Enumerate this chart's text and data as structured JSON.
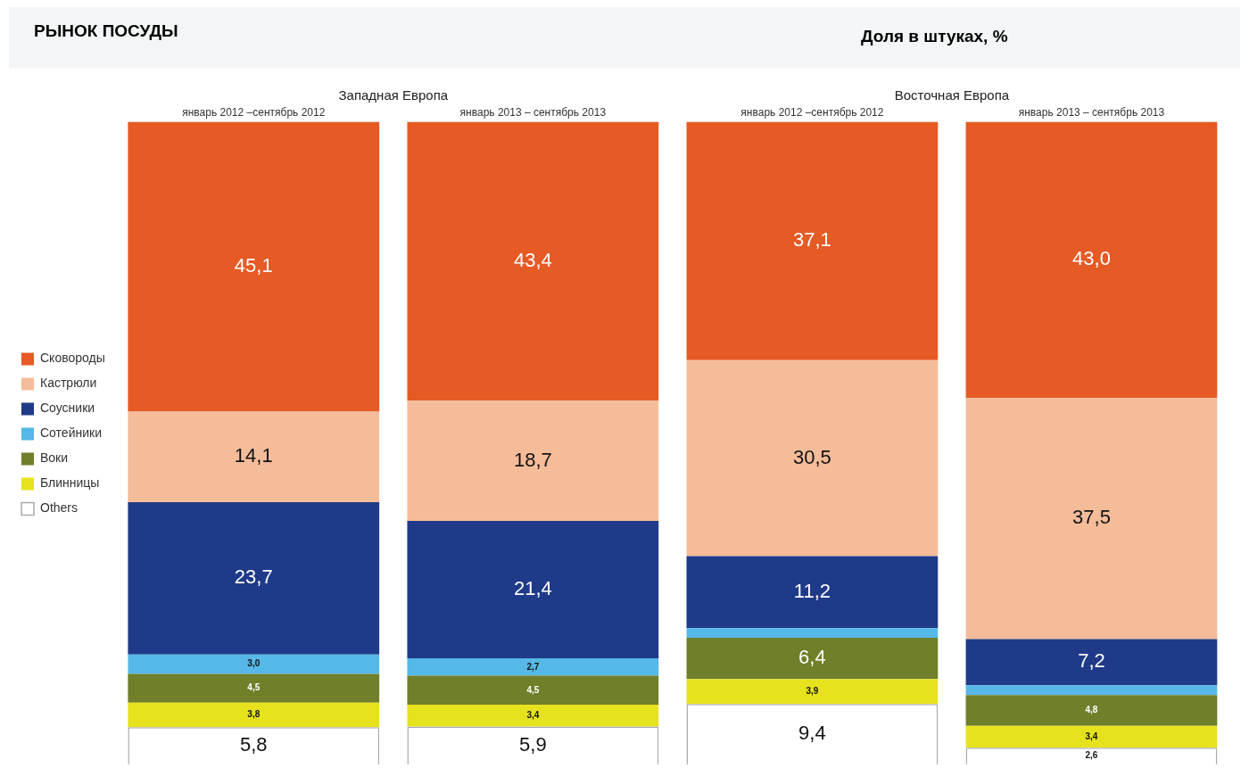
{
  "chart_data": {
    "type": "bar",
    "title": "РЫНОК ПОСУДЫ",
    "subtitle": "Доля в штуках, %",
    "annotations": [
      "Западная Европа",
      "Восточная Европа"
    ],
    "categories": [
      "январь 2012 –сентябрь 2012",
      "январь 2013 – сентябрь 2013",
      "январь 2012 –сентябрь 2012",
      "январь 2013 – сентябрь 2013"
    ],
    "stacked": true,
    "legend": "left",
    "grid": false,
    "series": [
      {
        "name": "Others",
        "color": "#ffffff",
        "values": [
          5.8,
          5.9,
          9.4,
          2.6
        ],
        "value_labels": [
          "5,8",
          "5,9",
          "9,4",
          "2,6"
        ]
      },
      {
        "name": "Блинницы",
        "color": "#e6e21e",
        "values": [
          3.8,
          3.4,
          3.9,
          3.4
        ],
        "value_labels": [
          "3,8",
          "3,4",
          "3,9",
          "3,4"
        ]
      },
      {
        "name": "Воки",
        "color": "#6f7f2a",
        "values": [
          4.5,
          4.5,
          6.4,
          4.8
        ],
        "value_labels": [
          "4,5",
          "4,5",
          "6,4",
          "4,8"
        ]
      },
      {
        "name": "Сотейники",
        "color": "#55b8e6",
        "values": [
          3.0,
          2.7,
          1.5,
          1.5
        ],
        "value_labels": [
          "3,0",
          "2,7",
          null,
          null
        ]
      },
      {
        "name": "Соусники",
        "color": "#1f3a88",
        "values": [
          23.7,
          21.4,
          11.2,
          7.2
        ],
        "value_labels": [
          "23,7",
          "21,4",
          "11,2",
          "7,2"
        ]
      },
      {
        "name": "Кастрюли",
        "color": "#f5bc9a",
        "values": [
          14.1,
          18.7,
          30.5,
          37.5
        ],
        "value_labels": [
          "14,1",
          "18,7",
          "30,5",
          "37,5"
        ]
      },
      {
        "name": "Сковороды",
        "color": "#e55a25",
        "values": [
          45.1,
          43.4,
          37.1,
          43.0
        ],
        "value_labels": [
          "45,1",
          "43,4",
          "37,1",
          "43,0"
        ]
      }
    ]
  }
}
